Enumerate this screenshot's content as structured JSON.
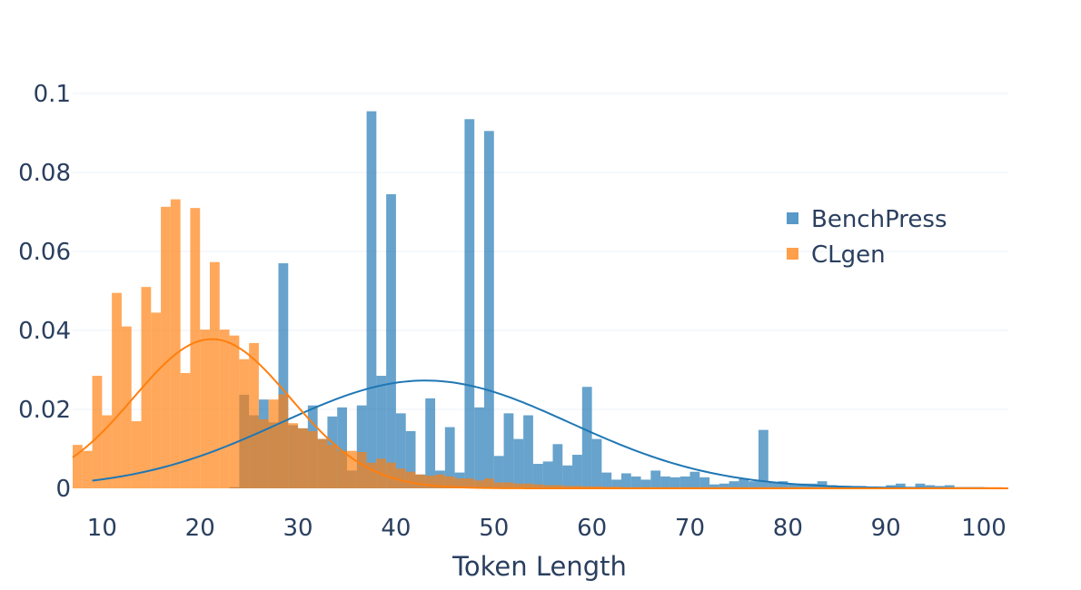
{
  "chart_data": {
    "type": "bar",
    "title": "",
    "xlabel": "Token Length",
    "ylabel": "",
    "xlim": [
      7,
      102.5
    ],
    "ylim": [
      0,
      0.1
    ],
    "x_ticks": [
      10,
      20,
      30,
      40,
      50,
      60,
      70,
      80,
      90,
      100
    ],
    "y_ticks": [
      0,
      0.02,
      0.04,
      0.06,
      0.08,
      0.1
    ],
    "y_tick_labels": [
      "0",
      "0.02",
      "0.04",
      "0.06",
      "0.08",
      "0.1"
    ],
    "grid": true,
    "legend_position": "right",
    "bin_width": 1,
    "barmode": "overlay",
    "series": [
      {
        "name": "BenchPress",
        "color": "#1f77b4",
        "bin_starts": [
          23,
          24,
          25,
          26,
          27,
          28,
          29,
          30,
          31,
          32,
          33,
          34,
          35,
          36,
          37,
          38,
          39,
          40,
          41,
          42,
          43,
          44,
          45,
          46,
          47,
          48,
          49,
          50,
          51,
          52,
          53,
          54,
          55,
          56,
          57,
          58,
          59,
          60,
          61,
          62,
          63,
          64,
          65,
          66,
          67,
          68,
          69,
          70,
          71,
          72,
          73,
          74,
          75,
          76,
          77,
          78,
          79,
          80,
          81,
          82,
          83,
          84,
          85,
          86,
          87,
          88,
          89,
          90,
          91,
          92,
          93,
          94,
          95,
          96,
          97,
          98,
          99,
          100,
          101
        ],
        "values": [
          0.0003,
          0.0237,
          0.0185,
          0.0225,
          0.0167,
          0.057,
          0.016,
          0.0152,
          0.021,
          0.0125,
          0.0182,
          0.0205,
          0.0045,
          0.021,
          0.0955,
          0.0285,
          0.0745,
          0.019,
          0.0145,
          0.0035,
          0.0228,
          0.0045,
          0.0155,
          0.004,
          0.0935,
          0.0205,
          0.0905,
          0.0082,
          0.019,
          0.0125,
          0.0185,
          0.0062,
          0.0068,
          0.0112,
          0.0058,
          0.0085,
          0.0257,
          0.0125,
          0.004,
          0.0022,
          0.0038,
          0.003,
          0.0022,
          0.0045,
          0.003,
          0.0028,
          0.003,
          0.0042,
          0.0028,
          0.001,
          0.0012,
          0.0018,
          0.0025,
          0.0018,
          0.0148,
          0.0015,
          0.0018,
          0.0012,
          0.0012,
          0.0012,
          0.0018,
          0.0008,
          0.0006,
          0.0006,
          0.0006,
          0.0004,
          0.0004,
          0.0008,
          0.0012,
          0.0004,
          0.0012,
          0.0008,
          0.0006,
          0.0008,
          0.0003,
          0.0003,
          0.0003,
          0.0002,
          0.0002
        ]
      },
      {
        "name": "CLgen",
        "color": "#ff7f0e",
        "bin_starts": [
          7,
          8,
          9,
          10,
          11,
          12,
          13,
          14,
          15,
          16,
          17,
          18,
          19,
          20,
          21,
          22,
          23,
          24,
          25,
          26,
          27,
          28,
          29,
          30,
          31,
          32,
          33,
          34,
          35,
          36,
          37,
          38,
          39,
          40,
          41,
          42,
          43,
          44,
          45,
          46,
          47,
          48,
          49,
          50,
          51,
          52,
          53,
          54,
          55,
          56,
          57,
          58,
          59,
          60,
          61,
          62,
          63,
          64,
          65,
          66,
          67,
          68,
          69,
          70,
          71,
          72,
          73,
          74,
          75,
          76,
          77,
          78,
          79,
          80,
          81,
          82,
          83,
          84,
          85,
          86,
          87,
          88,
          89,
          90,
          91,
          92,
          93,
          94,
          95,
          96,
          97,
          98,
          99,
          100,
          101
        ],
        "values": [
          0.011,
          0.0095,
          0.0285,
          0.0185,
          0.0495,
          0.041,
          0.017,
          0.051,
          0.0445,
          0.0713,
          0.0732,
          0.0292,
          0.071,
          0.0402,
          0.0573,
          0.0402,
          0.0387,
          0.0327,
          0.0368,
          0.0175,
          0.0225,
          0.0238,
          0.0165,
          0.0152,
          0.0145,
          0.0125,
          0.011,
          0.0095,
          0.0095,
          0.0092,
          0.0065,
          0.0075,
          0.0065,
          0.005,
          0.0042,
          0.0035,
          0.0032,
          0.0035,
          0.003,
          0.0025,
          0.0025,
          0.002,
          0.0025,
          0.0015,
          0.0015,
          0.0012,
          0.0012,
          0.001,
          0.0008,
          0.0008,
          0.0006,
          0.0006,
          0.0005,
          0.0005,
          0.0004,
          0.0004,
          0.0003,
          0.0003,
          0.0003,
          0.0003,
          0.0003,
          0.0003,
          0.0003,
          0.0003,
          0.0003,
          0.0003,
          0.0003,
          0.0003,
          0.0003,
          0.0003,
          0.0003,
          0.0003,
          0.0003,
          0.0003,
          0.0003,
          0.0003,
          0.0003,
          0.0003,
          0.0003,
          0.0003,
          0.0003,
          0.0003,
          0.0003,
          0.0003,
          0.0003,
          0.0003,
          0.0003,
          0.0003,
          0.0003,
          0.0003,
          0.0003,
          0.0003,
          0.0003,
          0.0003,
          0.0003
        ]
      }
    ],
    "density_curves": [
      {
        "series": "BenchPress",
        "color": "#1f77b4",
        "x_start": 9,
        "x_end": 102.5,
        "mean": 43,
        "sd": 14.8,
        "peak": 0.0273
      },
      {
        "series": "CLgen",
        "color": "#ff7f0e",
        "x_start": 7,
        "x_end": 102.5,
        "mean": 21.2,
        "sd": 8.0,
        "peak": 0.0378
      }
    ]
  }
}
